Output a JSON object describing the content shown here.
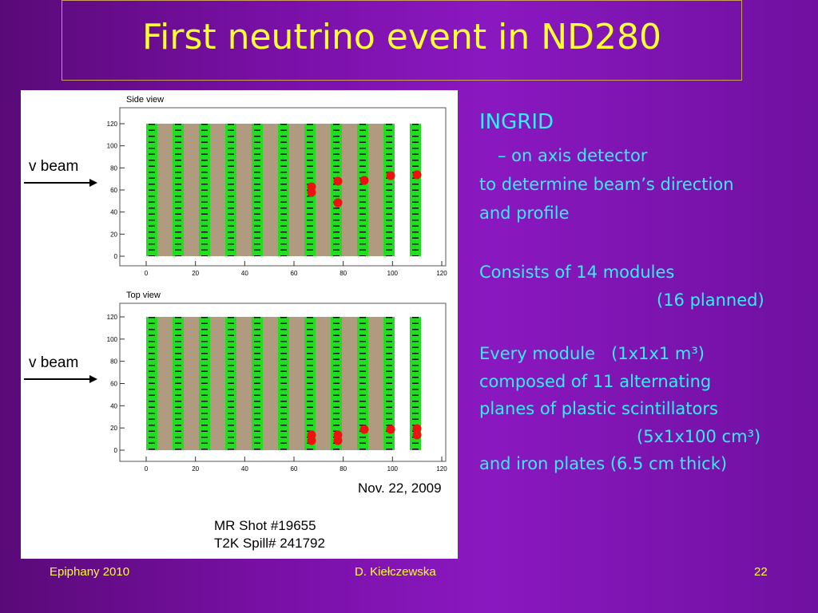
{
  "title": "First neutrino event in ND280",
  "figure": {
    "panels": [
      {
        "title": "Side view",
        "beam": "v beam",
        "xticks": [
          0,
          20,
          40,
          60,
          80,
          100,
          120
        ],
        "yticks": [
          0,
          20,
          40,
          60,
          80,
          100,
          120
        ]
      },
      {
        "title": "Top view",
        "beam": "v beam",
        "xticks": [
          0,
          20,
          40,
          60,
          80,
          100,
          120
        ],
        "yticks": [
          0,
          20,
          40,
          60,
          80,
          100,
          120
        ]
      }
    ],
    "date": "Nov. 22, 2009",
    "shot": "MR Shot #19655",
    "spill": "T2K Spill# 241792"
  },
  "body": {
    "heading": "INGRID",
    "lines": [
      "– on axis detector",
      "to determine beam’s direction",
      "and profile",
      "Consists of 14 modules",
      "(16 planned)",
      "Every module   (1x1x1 m³)",
      "composed of 11 alternating",
      "planes of plastic scintillators",
      "(5x1x100 cm³)",
      "and iron plates (6.5 cm thick)"
    ]
  },
  "footer": {
    "left": "Epiphany 2010",
    "center": "D. Kiełczewska",
    "right": "22"
  }
}
